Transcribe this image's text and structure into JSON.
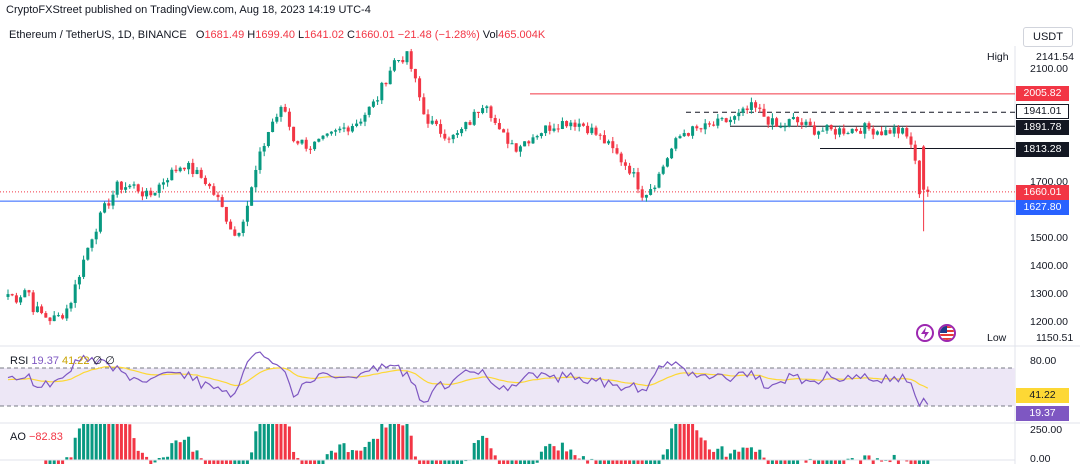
{
  "header": {
    "published": "CryptoFXStreet published on TradingView.com, Aug 18, 2023 14:19 UTC-4",
    "symbol": "Ethereum / TetherUS, 1D, BINANCE",
    "o_label": "O",
    "o_value": "1681.49",
    "h_label": "H",
    "h_value": "1699.40",
    "l_label": "L",
    "l_value": "1641.02",
    "c_label": "C",
    "c_value": "1660.01",
    "change": "−21.48 (−1.28%)",
    "vol_label": "Vol",
    "vol_value": "465.004K",
    "currency": "USDT"
  },
  "price_axis": {
    "ticks": [
      "2100.00",
      "1700.00",
      "1500.00",
      "1400.00",
      "1300.00",
      "1200.00"
    ],
    "high_label": "High",
    "high_value": "2141.54",
    "low_label": "Low",
    "low_value": "1150.51"
  },
  "price_tags": [
    {
      "id": "r1",
      "text": "2005.82",
      "bg": "#f23645",
      "fg": "#ffffff"
    },
    {
      "id": "r2",
      "text": "1941.01",
      "bg": "#ffffff",
      "fg": "#131722",
      "border": "#131722"
    },
    {
      "id": "r3",
      "text": "1891.78",
      "bg": "#131722",
      "fg": "#ffffff"
    },
    {
      "id": "r4",
      "text": "1813.28",
      "bg": "#131722",
      "fg": "#ffffff"
    },
    {
      "id": "cl",
      "text": "1660.01",
      "bg": "#f23645",
      "fg": "#ffffff"
    },
    {
      "id": "sp",
      "text": "1627.80",
      "bg": "#2962ff",
      "fg": "#ffffff"
    }
  ],
  "rsi": {
    "label": "RSI",
    "value": "19.37",
    "ma_value": "41.22",
    "extra": "∅ ∅",
    "axis_top": "80.00",
    "tag_ma": "41.22",
    "tag_rsi": "19.37"
  },
  "ao": {
    "label": "AO",
    "value": "−82.83",
    "axis_top": "250.00",
    "axis_zero": "0.00"
  },
  "icons": [
    "lightning-icon",
    "us-flag-icon"
  ],
  "colors": {
    "up": "#089981",
    "down": "#f23645",
    "support": "#2962ff",
    "rsi_line": "#7e57c2",
    "rsi_ma": "#fdd835",
    "rsi_band": "#ede7f6",
    "ao_up": "#089981",
    "ao_down": "#f23645"
  },
  "chart_data": {
    "type": "candlestick",
    "title": "Ethereum / TetherUS, 1D, BINANCE",
    "ylim": [
      1150,
      2150
    ],
    "levels": {
      "resistance_red": 2005.82,
      "resistance_dashed": 1941.01,
      "resistance_1": 1891.78,
      "resistance_2": 1813.28,
      "last_close": 1660.01,
      "support_blue": 1627.8
    },
    "anchors": [
      [
        0,
        1300
      ],
      [
        10,
        1285
      ],
      [
        18,
        1310
      ],
      [
        22,
        1330
      ],
      [
        28,
        1255
      ],
      [
        40,
        1225
      ],
      [
        50,
        1210
      ],
      [
        60,
        1222
      ],
      [
        70,
        1260
      ],
      [
        80,
        1360
      ],
      [
        95,
        1500
      ],
      [
        110,
        1600
      ],
      [
        125,
        1680
      ],
      [
        145,
        1680
      ],
      [
        160,
        1640
      ],
      [
        180,
        1710
      ],
      [
        200,
        1760
      ],
      [
        225,
        1700
      ],
      [
        240,
        1630
      ],
      [
        260,
        1500
      ],
      [
        275,
        1630
      ],
      [
        285,
        1760
      ],
      [
        300,
        1900
      ],
      [
        315,
        1960
      ],
      [
        325,
        1850
      ],
      [
        345,
        1820
      ],
      [
        360,
        1840
      ],
      [
        380,
        1880
      ],
      [
        400,
        1910
      ],
      [
        420,
        1980
      ],
      [
        440,
        2120
      ],
      [
        455,
        2140
      ],
      [
        462,
        2080
      ],
      [
        475,
        1930
      ],
      [
        490,
        1880
      ],
      [
        510,
        1850
      ],
      [
        528,
        1910
      ],
      [
        545,
        1990
      ],
      [
        560,
        1870
      ],
      [
        580,
        1820
      ],
      [
        605,
        1870
      ],
      [
        625,
        1900
      ],
      [
        640,
        1910
      ],
      [
        655,
        1900
      ],
      [
        665,
        1880
      ],
      [
        680,
        1840
      ],
      [
        695,
        1790
      ],
      [
        710,
        1740
      ],
      [
        725,
        1650
      ],
      [
        740,
        1700
      ],
      [
        755,
        1800
      ],
      [
        770,
        1870
      ],
      [
        790,
        1880
      ],
      [
        810,
        1900
      ],
      [
        830,
        1920
      ],
      [
        850,
        1960
      ],
      [
        862,
        1930
      ],
      [
        880,
        1880
      ],
      [
        895,
        1915
      ],
      [
        905,
        1900
      ],
      [
        920,
        1880
      ],
      [
        940,
        1875
      ],
      [
        960,
        1880
      ],
      [
        975,
        1885
      ],
      [
        990,
        1880
      ],
      [
        1000,
        1870
      ],
      [
        1010,
        1880
      ],
      [
        1022,
        1868
      ],
      [
        1032,
        1825
      ],
      [
        1040,
        1665
      ],
      [
        1050,
        1660
      ]
    ],
    "rsi_range": [
      0,
      100
    ],
    "ao_last": -82.83
  }
}
